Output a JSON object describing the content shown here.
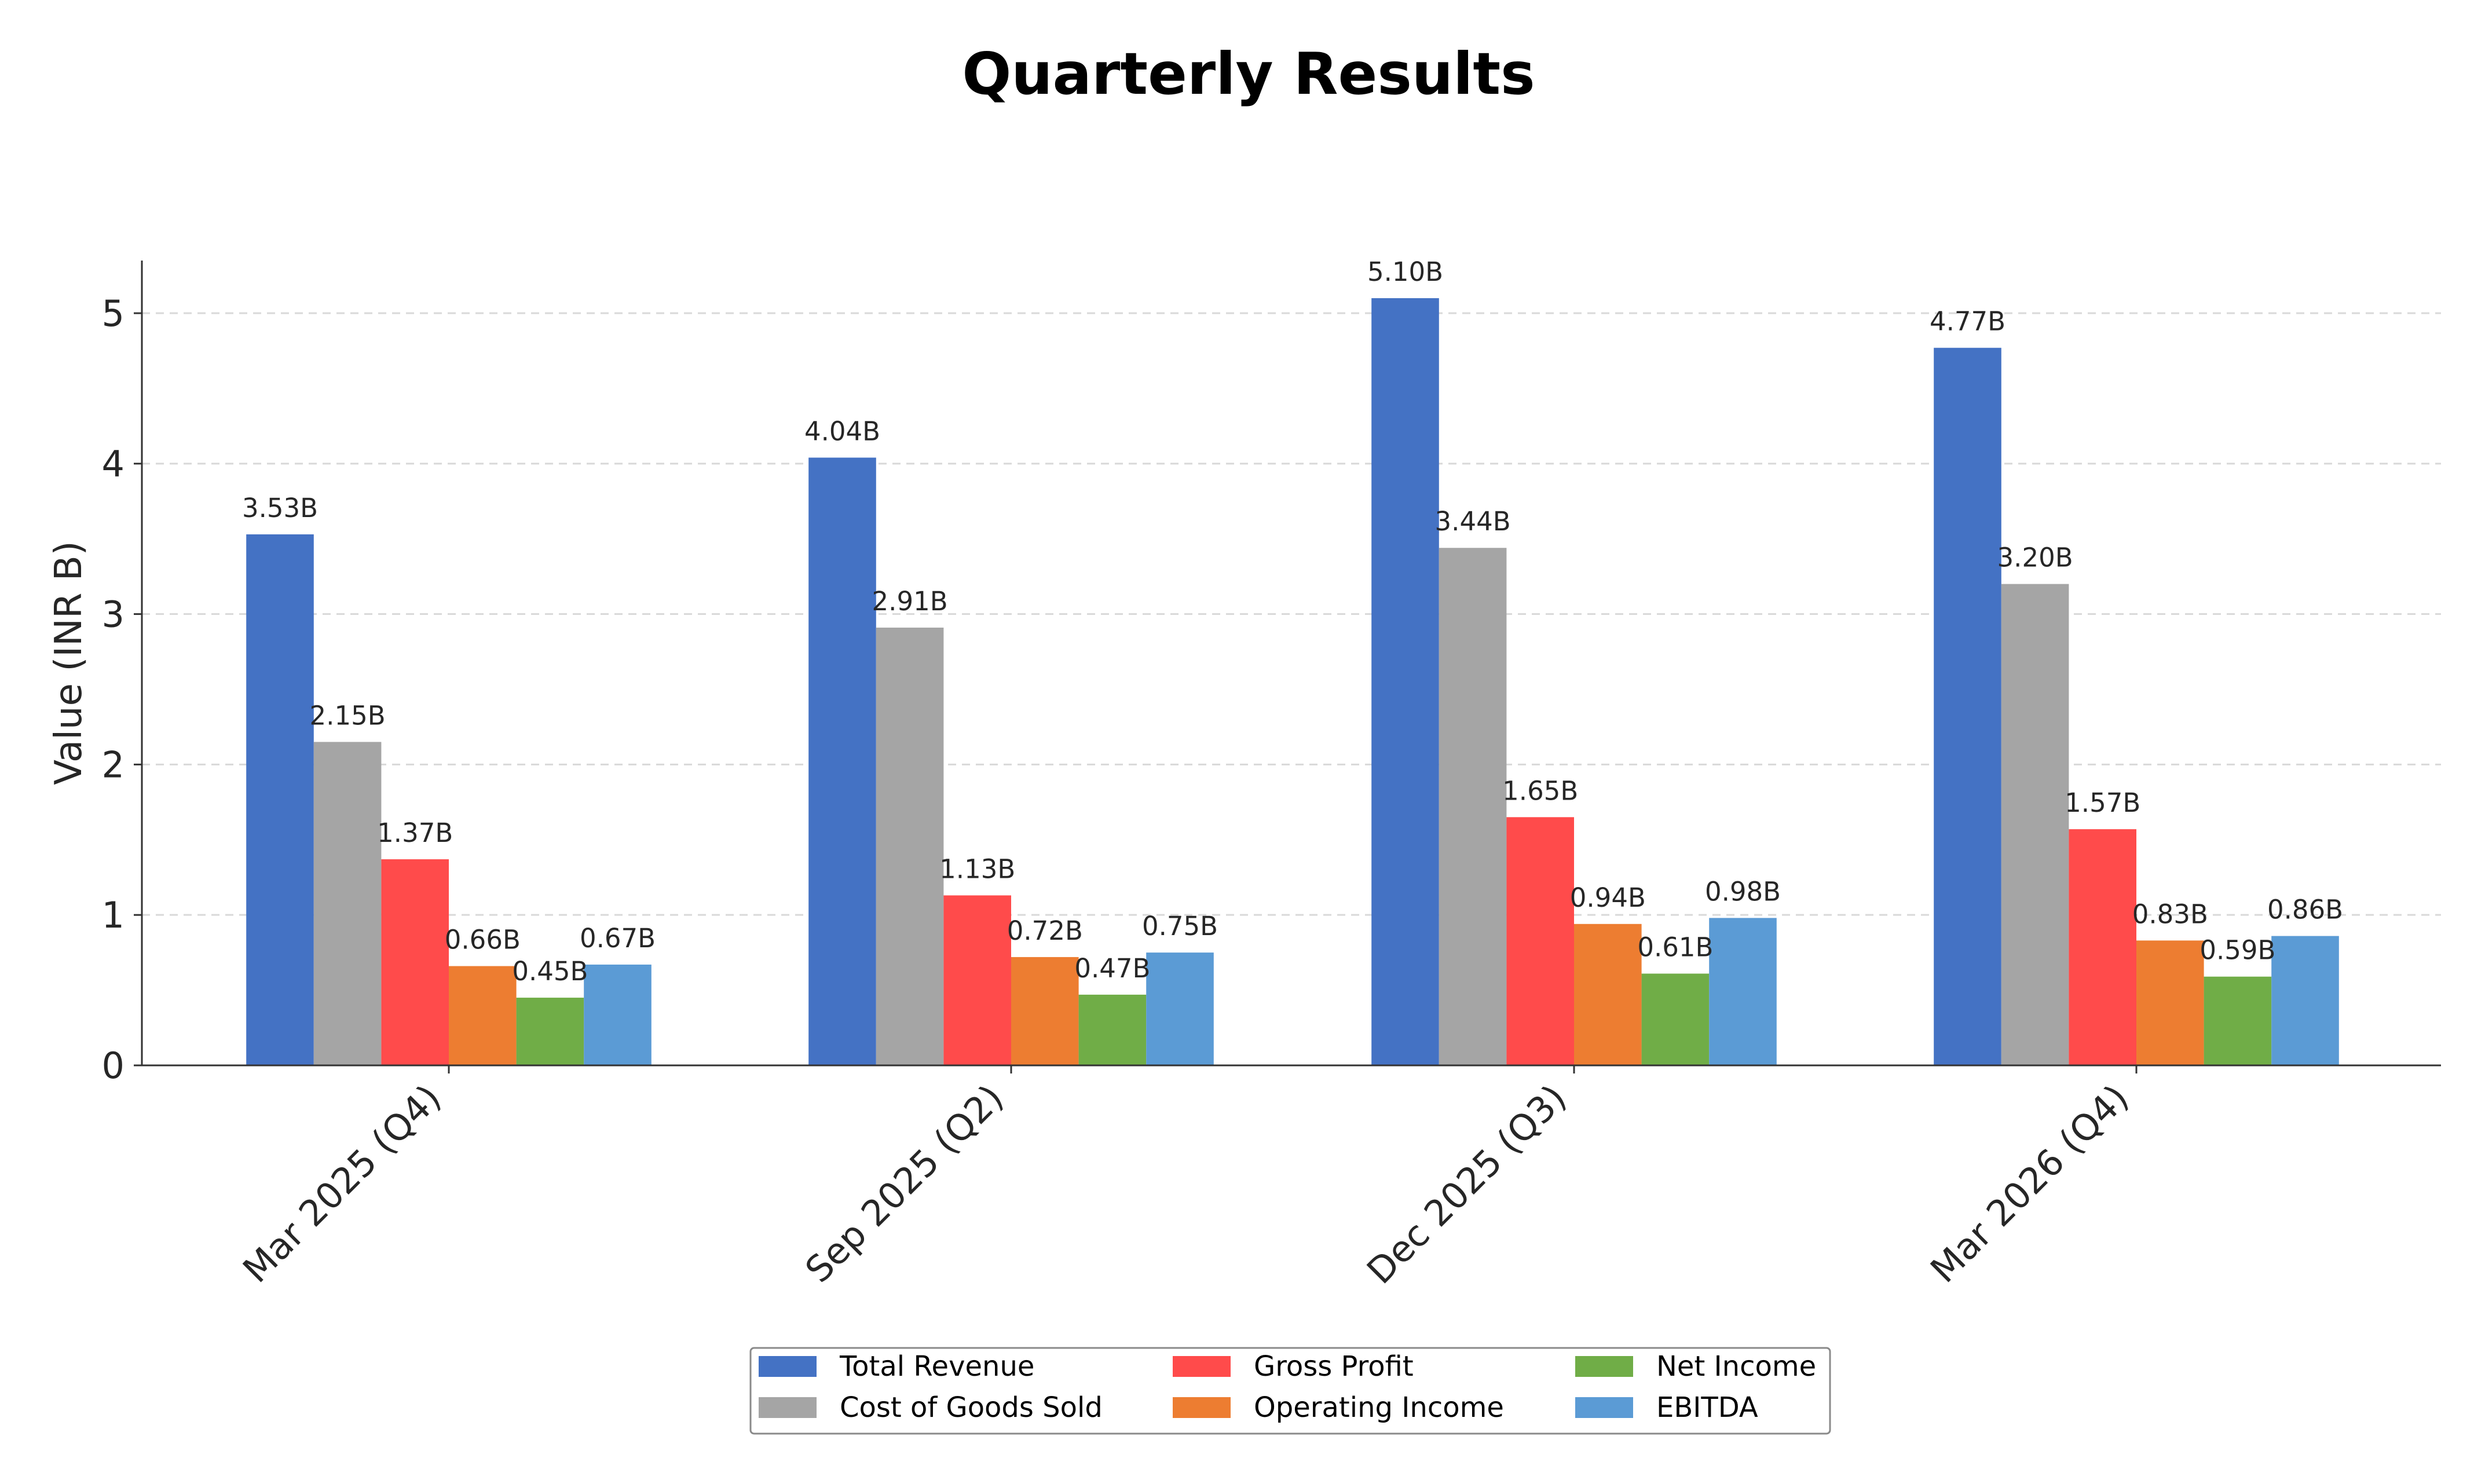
{
  "chart_data": {
    "type": "bar",
    "title": "Quarterly Results",
    "xlabel": "",
    "ylabel": "Value (INR B)",
    "ylim": [
      0,
      5.35
    ],
    "yticks": [
      "0",
      "1",
      "2",
      "3",
      "4",
      "5"
    ],
    "ytick_values": [
      0,
      1,
      2,
      3,
      4,
      5
    ],
    "grid": "y-dashed",
    "legend_position": "bottom-center",
    "categories": [
      "Mar 2025 (Q4)",
      "Sep 2025 (Q2)",
      "Dec 2025 (Q3)",
      "Mar 2026 (Q4)"
    ],
    "series": [
      {
        "name": "Total Revenue",
        "color": "#4472c4",
        "values": [
          3.53,
          4.04,
          5.1,
          4.77
        ],
        "labels": [
          "3.53B",
          "4.04B",
          "5.10B",
          "4.77B"
        ]
      },
      {
        "name": "Cost of Goods Sold",
        "color": "#a5a5a5",
        "values": [
          2.15,
          2.91,
          3.44,
          3.2
        ],
        "labels": [
          "2.15B",
          "2.91B",
          "3.44B",
          "3.20B"
        ]
      },
      {
        "name": "Gross Profit",
        "color": "#ff4b4b",
        "values": [
          1.37,
          1.13,
          1.65,
          1.57
        ],
        "labels": [
          "1.37B",
          "1.13B",
          "1.65B",
          "1.57B"
        ]
      },
      {
        "name": "Operating Income",
        "color": "#ed7d31",
        "values": [
          0.66,
          0.72,
          0.94,
          0.83
        ],
        "labels": [
          "0.66B",
          "0.72B",
          "0.94B",
          "0.83B"
        ]
      },
      {
        "name": "Net Income",
        "color": "#70ad47",
        "values": [
          0.45,
          0.47,
          0.61,
          0.59
        ],
        "labels": [
          "0.45B",
          "0.47B",
          "0.61B",
          "0.59B"
        ]
      },
      {
        "name": "EBITDA",
        "color": "#5b9bd5",
        "values": [
          0.67,
          0.75,
          0.98,
          0.86
        ],
        "labels": [
          "0.67B",
          "0.75B",
          "0.98B",
          "0.86B"
        ]
      }
    ]
  }
}
